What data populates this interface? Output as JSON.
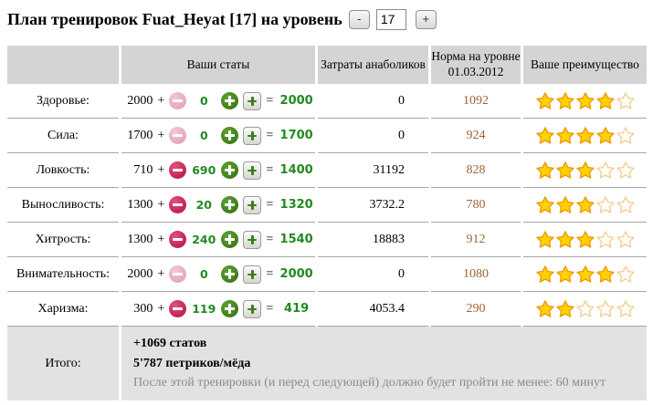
{
  "title": {
    "text": "План тренировок Fuat_Heyat [17] на уровень",
    "minus_label": "-",
    "level_value": "17",
    "plus_label": "+"
  },
  "icons": {
    "minus_circle": "minus in crimson circle (−)",
    "plus_circle": "plus in green circle (+)",
    "plus_step_button": "green plus on gray button (+)",
    "star_filled": "★",
    "star_empty": "☆"
  },
  "colors": {
    "header_bg": "#d4d4d4",
    "footer_bg": "#e2e2e2",
    "green_number": "#218a21",
    "norm_text": "#996633",
    "minus_active": "#c2224f",
    "minus_disabled": "#e5a8be",
    "plus_green": "#3f7d1c",
    "star_filled": "#ffd200",
    "star_outline": "#ef9a00"
  },
  "table": {
    "headers": {
      "stats": "Ваши статы",
      "anabolics": "Затраты анаболиков",
      "norm_line1": "Норма на уровне",
      "norm_line2": "01.03.2012",
      "advantage": "Ваше преимущество"
    },
    "plus_sign": "+",
    "equals_sign": "=",
    "rows": [
      {
        "name": "Здоровье:",
        "base": "2000",
        "added": "0",
        "total": "2000",
        "anabolics": "0",
        "norm": "1092",
        "stars": 4,
        "minus_active": false
      },
      {
        "name": "Сила:",
        "base": "1700",
        "added": "0",
        "total": "1700",
        "anabolics": "0",
        "norm": "924",
        "stars": 4,
        "minus_active": false
      },
      {
        "name": "Ловкость:",
        "base": "710",
        "added": "690",
        "total": "1400",
        "anabolics": "31192",
        "norm": "828",
        "stars": 3,
        "minus_active": true
      },
      {
        "name": "Выносливость:",
        "base": "1300",
        "added": "20",
        "total": "1320",
        "anabolics": "3732.2",
        "norm": "780",
        "stars": 3,
        "minus_active": true
      },
      {
        "name": "Хитрость:",
        "base": "1300",
        "added": "240",
        "total": "1540",
        "anabolics": "18883",
        "norm": "912",
        "stars": 3,
        "minus_active": true
      },
      {
        "name": "Внимательность:",
        "base": "2000",
        "added": "0",
        "total": "2000",
        "anabolics": "0",
        "norm": "1080",
        "stars": 4,
        "minus_active": false
      },
      {
        "name": "Харизма:",
        "base": "300",
        "added": "119",
        "total": "419",
        "anabolics": "4053.4",
        "norm": "290",
        "stars": 2,
        "minus_active": true
      }
    ],
    "footer": {
      "label": "Итого:",
      "line1": "+1069 статов",
      "line2": "5'787 петриков/мёда",
      "line3": "После этой тренировки (и перед следующей) должно будет пройти не менее: 60 минут"
    }
  }
}
